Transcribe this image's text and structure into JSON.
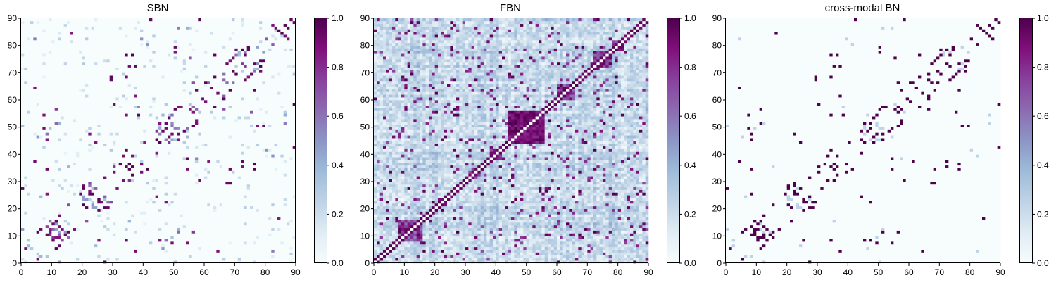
{
  "chart_data": [
    {
      "type": "heatmap",
      "title": "SBN",
      "xlim": [
        0,
        90
      ],
      "ylim": [
        0,
        90
      ],
      "x_ticks": [
        "0",
        "10",
        "20",
        "30",
        "40",
        "50",
        "60",
        "70",
        "80",
        "90"
      ],
      "y_ticks": [
        "0",
        "10",
        "20",
        "30",
        "40",
        "50",
        "60",
        "70",
        "80",
        "90"
      ],
      "colorbar": {
        "range": [
          0,
          1
        ],
        "ticks": [
          "0.0",
          "0.2",
          "0.4",
          "0.6",
          "0.8",
          "1.0"
        ]
      },
      "colormap": "BuPu",
      "pattern": "sparse",
      "seed": 11
    },
    {
      "type": "heatmap",
      "title": "FBN",
      "xlim": [
        0,
        90
      ],
      "ylim": [
        0,
        90
      ],
      "x_ticks": [
        "0",
        "10",
        "20",
        "30",
        "40",
        "50",
        "60",
        "70",
        "80",
        "90"
      ],
      "y_ticks": [
        "0",
        "10",
        "20",
        "30",
        "40",
        "50",
        "60",
        "70",
        "80",
        "90"
      ],
      "colorbar": {
        "range": [
          0,
          1
        ],
        "ticks": [
          "0.0",
          "0.2",
          "0.4",
          "0.6",
          "0.8",
          "1.0"
        ]
      },
      "colormap": "BuPu",
      "pattern": "dense",
      "seed": 29
    },
    {
      "type": "heatmap",
      "title": "cross-modal BN",
      "xlim": [
        0,
        90
      ],
      "ylim": [
        0,
        90
      ],
      "x_ticks": [
        "0",
        "10",
        "20",
        "30",
        "40",
        "50",
        "60",
        "70",
        "80",
        "90"
      ],
      "y_ticks": [
        "0",
        "10",
        "20",
        "30",
        "40",
        "50",
        "60",
        "70",
        "80",
        "90"
      ],
      "colorbar": {
        "range": [
          0,
          1
        ],
        "ticks": [
          "0.0",
          "0.2",
          "0.4",
          "0.6",
          "0.8",
          "1.0"
        ]
      },
      "colormap": "BuPu",
      "pattern": "binary",
      "seed": 11
    }
  ]
}
